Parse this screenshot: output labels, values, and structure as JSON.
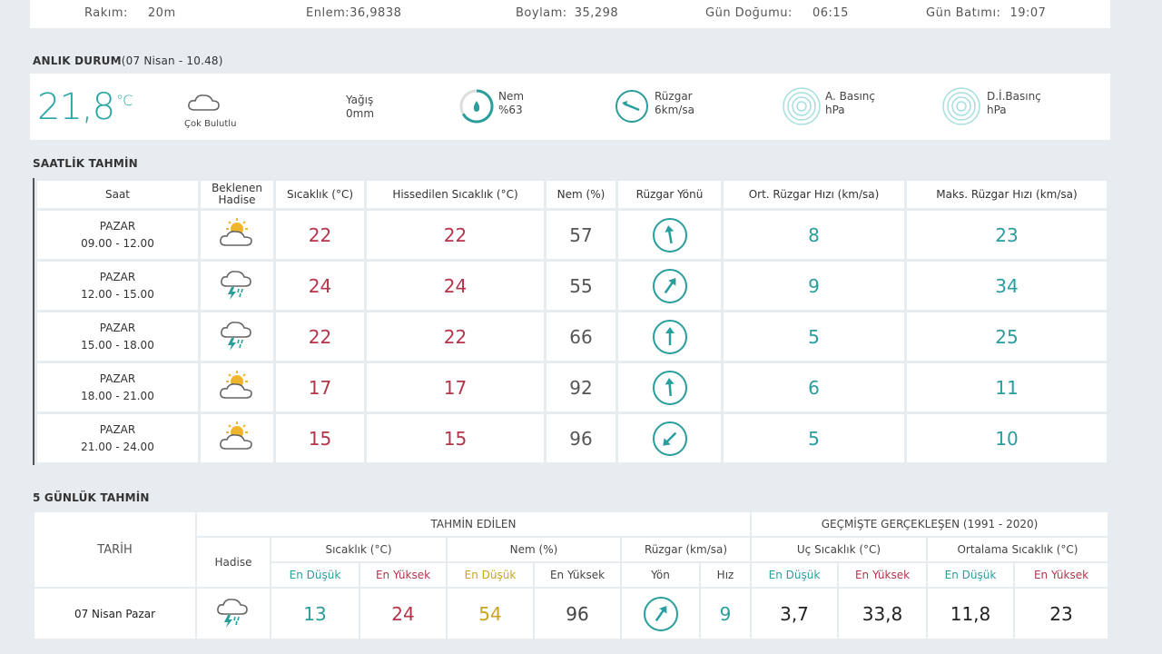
{
  "station": {
    "altitude_label": "Rakım:",
    "altitude_value": "20m",
    "lat_label": "Enlem:",
    "lat_value": "36,9838",
    "lon_label": "Boylam:",
    "lon_value": "35,298",
    "sunrise_label": "Gün Doğumu:",
    "sunrise_value": "06:15",
    "sunset_label": "Gün Batımı:",
    "sunset_value": "19:07"
  },
  "current": {
    "section_title": "ANLIK DURUM",
    "section_subtitle": "(07 Nisan - 10.48)",
    "temp": "21,8",
    "temp_unit": "°C",
    "condition": "Çok Bulutlu",
    "rain_label": "Yağış",
    "rain_value": "0mm",
    "humidity_label": "Nem",
    "humidity_value": "%63",
    "wind_label": "Rüzgar",
    "wind_value": "6km/sa",
    "pressure_label": "A. Basınç",
    "pressure_unit": "hPa",
    "sea_pressure_label": "D.İ.Basınç",
    "sea_pressure_unit": "hPa"
  },
  "hourly": {
    "section_title": "SAATLİK TAHMİN",
    "headers": {
      "time": "Saat",
      "event_line1": "Beklenen",
      "event_line2": "Hadise",
      "temp": "Sıcaklık (°C)",
      "feels": "Hissedilen Sıcaklık (°C)",
      "humidity": "Nem (%)",
      "wind_dir": "Rüzgar Yönü",
      "avg_wind": "Ort. Rüzgar Hızı (km/sa)",
      "max_wind": "Maks. Rüzgar Hızı (km/sa)"
    },
    "rows": [
      {
        "day": "PAZAR",
        "range": "09.00 - 12.00",
        "icon": "partly-cloudy-icon",
        "temp": "22",
        "feels": "22",
        "humidity": "57",
        "wind_deg": 350,
        "avg": "8",
        "max": "23"
      },
      {
        "day": "PAZAR",
        "range": "12.00 - 15.00",
        "icon": "thunderstorm-icon",
        "temp": "24",
        "feels": "24",
        "humidity": "55",
        "wind_deg": 35,
        "avg": "9",
        "max": "34"
      },
      {
        "day": "PAZAR",
        "range": "15.00 - 18.00",
        "icon": "thunderstorm-icon",
        "temp": "22",
        "feels": "22",
        "humidity": "66",
        "wind_deg": 0,
        "avg": "5",
        "max": "25"
      },
      {
        "day": "PAZAR",
        "range": "18.00 - 21.00",
        "icon": "partly-cloudy-icon",
        "temp": "17",
        "feels": "17",
        "humidity": "92",
        "wind_deg": 355,
        "avg": "6",
        "max": "11"
      },
      {
        "day": "PAZAR",
        "range": "21.00 - 24.00",
        "icon": "partly-cloudy-icon",
        "temp": "15",
        "feels": "15",
        "humidity": "96",
        "wind_deg": 225,
        "avg": "5",
        "max": "10"
      }
    ]
  },
  "daily": {
    "section_title": "5 GÜNLÜK TAHMİN",
    "headers": {
      "date": "TARİH",
      "forecast_group": "TAHMİN EDİLEN",
      "history_group": "GEÇMİŞTE GERÇEKLEŞEN (1991 - 2020)",
      "event": "Hadise",
      "temp": "Sıcaklık (°C)",
      "humidity": "Nem (%)",
      "wind": "Rüzgar (km/sa)",
      "extreme_temp": "Uç Sıcaklık (°C)",
      "avg_temp": "Ortalama Sıcaklık (°C)",
      "low": "En Düşük",
      "high": "En Yüksek",
      "dir": "Yön",
      "speed": "Hız"
    },
    "rows": [
      {
        "date": "07 Nisan Pazar",
        "icon": "thunderstorm-icon",
        "temp_low": "13",
        "temp_high": "24",
        "hum_low": "54",
        "hum_high": "96",
        "wind_deg": 35,
        "wind_speed": "9",
        "ext_low": "3,7",
        "ext_high": "33,8",
        "avg_low": "11,8",
        "avg_high": "23"
      }
    ]
  },
  "colors": {
    "accent": "#2aa6a6",
    "temp_red": "#b3344b",
    "humidity_yellow": "#c9a31f",
    "background": "#e7ecf1"
  }
}
